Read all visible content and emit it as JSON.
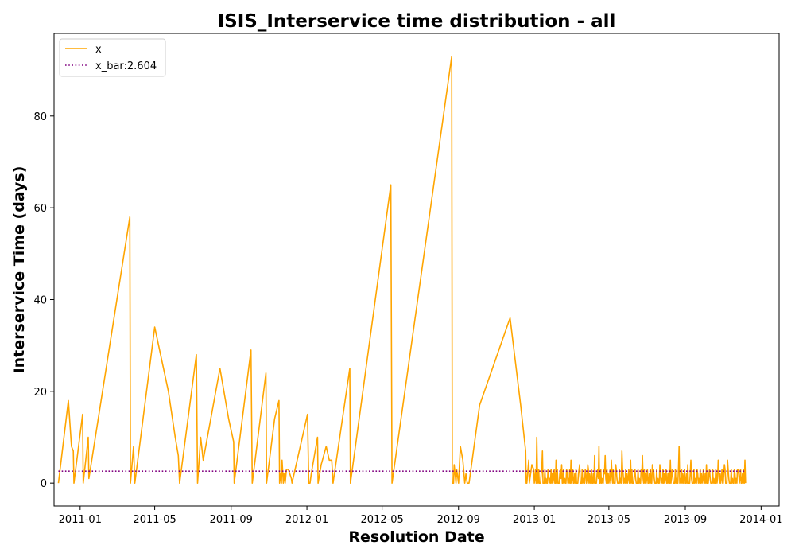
{
  "chart_data": {
    "type": "line",
    "title": "ISIS_Interservice time distribution - all",
    "xlabel": "Resolution Date",
    "ylabel": "Interservice Time (days)",
    "x_type": "date",
    "xlim": [
      "2010-11-20",
      "2014-01-30"
    ],
    "ylim": [
      -5,
      98
    ],
    "x_ticks": [
      "2011-01-01",
      "2011-05-01",
      "2011-09-01",
      "2012-01-01",
      "2012-05-01",
      "2012-09-01",
      "2013-01-01",
      "2013-05-01",
      "2013-09-01",
      "2014-01-01"
    ],
    "x_tick_labels": [
      "2011-01",
      "2011-05",
      "2011-09",
      "2012-01",
      "2012-05",
      "2012-09",
      "2013-01",
      "2013-05",
      "2013-09",
      "2014-01"
    ],
    "y_ticks": [
      0,
      20,
      40,
      60,
      80
    ],
    "legend_position": "upper left",
    "grid": false,
    "series": [
      {
        "name": "x",
        "color": "#ffa500",
        "style": "solid",
        "x": [
          "2010-11-27",
          "2010-12-13",
          "2010-12-18",
          "2010-12-21",
          "2010-12-22",
          "2011-01-05",
          "2011-01-06",
          "2011-01-14",
          "2011-01-15",
          "2011-03-22",
          "2011-03-23",
          "2011-03-28",
          "2011-03-30",
          "2011-05-01",
          "2011-05-23",
          "2011-06-03",
          "2011-06-08",
          "2011-06-10",
          "2011-07-07",
          "2011-07-09",
          "2011-07-14",
          "2011-07-18",
          "2011-08-14",
          "2011-08-28",
          "2011-09-05",
          "2011-09-06",
          "2011-10-03",
          "2011-10-05",
          "2011-10-27",
          "2011-10-28",
          "2011-11-10",
          "2011-11-17",
          "2011-11-18",
          "2011-11-20",
          "2011-11-21",
          "2011-11-22",
          "2011-11-24",
          "2011-11-25",
          "2011-11-27",
          "2011-11-29",
          "2011-12-02",
          "2011-12-07",
          "2011-12-08",
          "2012-01-02",
          "2012-01-04",
          "2012-01-06",
          "2012-01-08",
          "2012-01-18",
          "2012-01-19",
          "2012-01-24",
          "2012-02-01",
          "2012-02-06",
          "2012-02-10",
          "2012-02-12",
          "2012-03-10",
          "2012-03-11",
          "2012-05-15",
          "2012-05-17",
          "2012-08-21",
          "2012-08-22",
          "2012-08-24",
          "2012-08-25",
          "2012-08-28",
          "2012-08-29",
          "2012-09-01",
          "2012-09-04",
          "2012-09-08",
          "2012-09-11",
          "2012-09-13",
          "2012-09-15",
          "2012-09-18",
          "2012-10-05",
          "2012-11-23",
          "2012-12-10",
          "2012-12-18",
          "2012-12-19",
          "2012-12-20",
          "2012-12-23",
          "2012-12-24",
          "2012-12-28",
          "2012-12-31"
        ],
        "y": [
          0,
          18,
          8,
          7,
          0,
          15,
          0,
          10,
          1,
          58,
          0,
          8,
          0,
          34,
          20,
          10,
          6,
          0,
          28,
          0,
          10,
          5,
          25,
          14,
          9,
          0,
          29,
          0,
          24,
          0,
          14,
          18,
          0,
          2,
          0,
          5,
          0,
          2,
          0,
          3,
          3,
          1,
          0,
          15,
          0,
          0,
          2,
          10,
          0,
          4,
          8,
          5,
          5,
          0,
          25,
          0,
          65,
          0,
          93,
          0,
          0,
          4,
          0,
          3,
          0,
          8,
          5,
          0,
          2,
          0,
          0,
          17,
          36,
          17,
          7,
          0,
          0,
          5,
          0,
          4,
          3
        ]
      },
      {
        "name": "x_bar:2.604",
        "color": "#800080",
        "style": "dotted",
        "x": [
          "2010-11-27",
          "2013-12-07"
        ],
        "y": [
          2.604,
          2.604
        ]
      }
    ],
    "dense_segment": {
      "from": "2012-12-31",
      "to": "2013-12-07",
      "y_min": 0,
      "y_max": 3,
      "spikes": [
        [
          "2013-01-05",
          10
        ],
        [
          "2013-01-14",
          7
        ],
        [
          "2013-02-05",
          5
        ],
        [
          "2013-02-14",
          4
        ],
        [
          "2013-03-01",
          5
        ],
        [
          "2013-03-15",
          4
        ],
        [
          "2013-03-28",
          4
        ],
        [
          "2013-04-08",
          6
        ],
        [
          "2013-04-15",
          8
        ],
        [
          "2013-04-25",
          6
        ],
        [
          "2013-05-05",
          5
        ],
        [
          "2013-05-12",
          4
        ],
        [
          "2013-05-22",
          7
        ],
        [
          "2013-06-05",
          5
        ],
        [
          "2013-06-24",
          6
        ],
        [
          "2013-07-10",
          4
        ],
        [
          "2013-07-22",
          4
        ],
        [
          "2013-08-08",
          5
        ],
        [
          "2013-08-22",
          8
        ],
        [
          "2013-09-05",
          4
        ],
        [
          "2013-09-10",
          5
        ],
        [
          "2013-10-05",
          4
        ],
        [
          "2013-10-24",
          5
        ],
        [
          "2013-11-03",
          4
        ],
        [
          "2013-11-08",
          5
        ],
        [
          "2013-11-25",
          3
        ],
        [
          "2013-12-06",
          5
        ]
      ]
    }
  }
}
